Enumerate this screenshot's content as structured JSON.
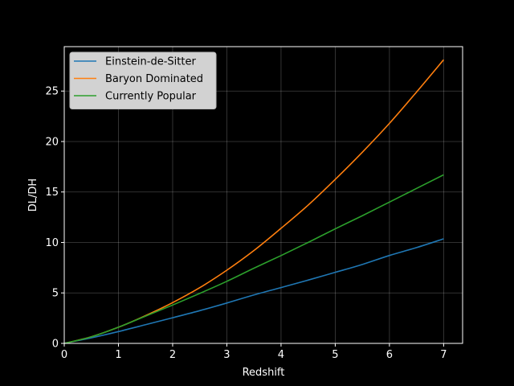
{
  "chart_data": {
    "type": "line",
    "xlabel": "Redshift",
    "ylabel": "DL/DH",
    "xlim": [
      0,
      7.35
    ],
    "ylim": [
      0,
      29.4
    ],
    "xticks": [
      0,
      1,
      2,
      3,
      4,
      5,
      6,
      7
    ],
    "yticks": [
      0,
      5,
      10,
      15,
      20,
      25
    ],
    "grid": true,
    "legend_position": "upper-left",
    "series": [
      {
        "name": "Einstein-de-Sitter",
        "color": "#1f77b4",
        "x": [
          0,
          0.5,
          1,
          1.5,
          2,
          2.5,
          3,
          3.5,
          4,
          4.5,
          5,
          5.5,
          6,
          6.5,
          7
        ],
        "values": [
          0,
          0.55,
          1.17,
          1.85,
          2.54,
          3.24,
          4.0,
          4.8,
          5.53,
          6.27,
          7.04,
          7.82,
          8.71,
          9.49,
          10.36
        ]
      },
      {
        "name": "Baryon Dominated",
        "color": "#ff7f0e",
        "x": [
          0,
          0.5,
          1,
          1.5,
          2,
          2.5,
          3,
          3.5,
          4,
          4.5,
          5,
          5.5,
          6,
          6.5,
          7
        ],
        "values": [
          0,
          0.66,
          1.6,
          2.75,
          4.04,
          5.52,
          7.25,
          9.2,
          11.4,
          13.7,
          16.25,
          18.94,
          21.8,
          24.9,
          28.1
        ]
      },
      {
        "name": "Currently Popular",
        "color": "#2ca02c",
        "x": [
          0,
          0.5,
          1,
          1.5,
          2,
          2.5,
          3,
          3.5,
          4,
          4.5,
          5,
          5.5,
          6,
          6.5,
          7
        ],
        "values": [
          0,
          0.65,
          1.6,
          2.7,
          3.8,
          4.95,
          6.15,
          7.45,
          8.7,
          10.0,
          11.35,
          12.65,
          14.0,
          15.35,
          16.7
        ]
      }
    ]
  }
}
